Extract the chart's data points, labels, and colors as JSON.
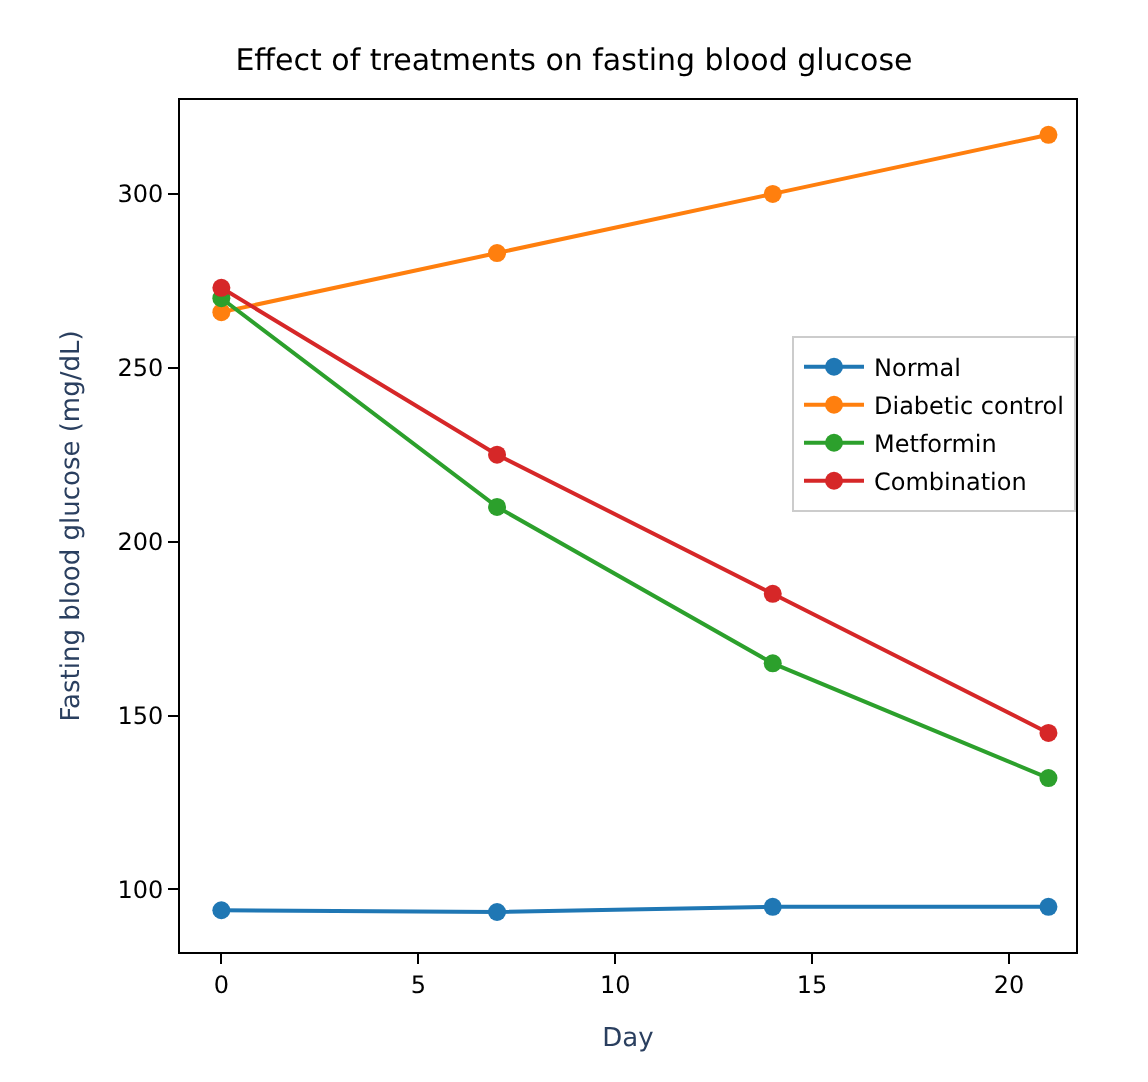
{
  "chart_data": {
    "type": "line",
    "title": "Effect of treatments on fasting blood glucose",
    "xlabel": "Day",
    "ylabel": "Fasting blood glucose (mg/dL)",
    "x": [
      0,
      7,
      14,
      21
    ],
    "series": [
      {
        "name": "Normal",
        "color": "#1f77b4",
        "values": [
          94,
          93.5,
          95,
          95
        ]
      },
      {
        "name": "Diabetic control",
        "color": "#ff7f0e",
        "values": [
          266,
          283,
          300,
          317
        ]
      },
      {
        "name": "Metformin",
        "color": "#2ca02c",
        "values": [
          270,
          210,
          165,
          132
        ]
      },
      {
        "name": "Combination",
        "color": "#d62728",
        "values": [
          273,
          225,
          185,
          145
        ]
      }
    ],
    "xlim": [
      -1.05,
      21.7
    ],
    "xticks": [
      0,
      5,
      10,
      15,
      20
    ],
    "ylim": [
      82,
      327
    ],
    "yticks": [
      100,
      150,
      200,
      250,
      300
    ],
    "legend": "right",
    "marker": "circle",
    "line_style": "solid",
    "grid": false
  }
}
